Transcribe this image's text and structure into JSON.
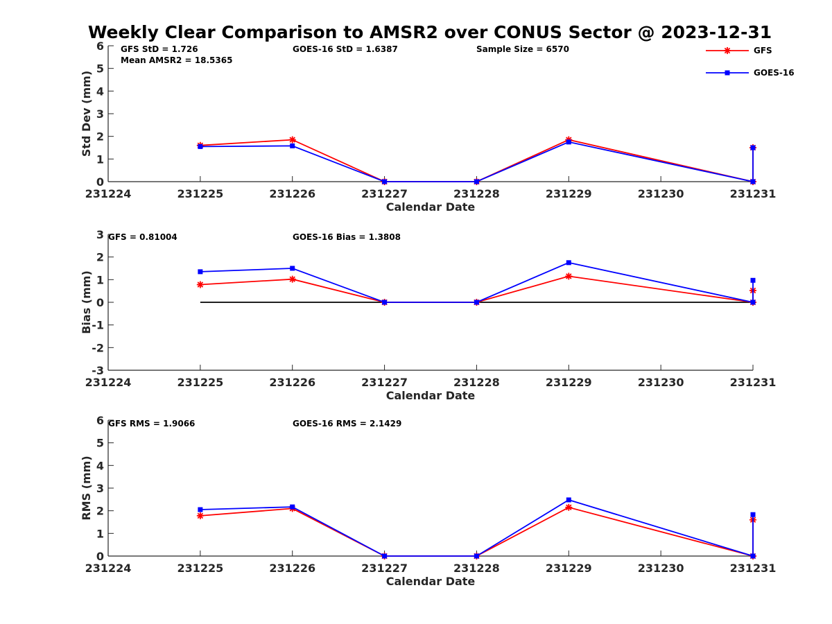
{
  "figure": {
    "title": "Weekly Clear Comparison to AMSR2 over CONUS Sector @ 2023-12-31"
  },
  "legend": {
    "placement": "top-right",
    "entries": [
      {
        "label": "GFS",
        "color": "#ff0000",
        "marker": "asterisk"
      },
      {
        "label": "GOES-16",
        "color": "#0000ff",
        "marker": "square"
      }
    ]
  },
  "chart_data": [
    {
      "type": "line",
      "xlabel": "Calendar Date",
      "ylabel": "Std Dev (mm)",
      "xlim": [
        231224,
        231231
      ],
      "ylim": [
        0,
        6
      ],
      "x_ticks": [
        "231224",
        "231225",
        "231226",
        "231227",
        "231228",
        "231229",
        "231230",
        "231231"
      ],
      "y_ticks": [
        "0",
        "1",
        "2",
        "3",
        "4",
        "5",
        "6"
      ],
      "grid": false,
      "annotations": [
        "GFS StD = 1.726",
        "Mean AMSR2 = 18.5365",
        "GOES-16 StD = 1.6387",
        "Sample Size = 6570"
      ],
      "series": [
        {
          "name": "GFS",
          "color": "#ff0000",
          "x": [
            231225,
            231226,
            231227,
            231228,
            231229,
            231231,
            231231
          ],
          "values": [
            1.6,
            1.85,
            0,
            0,
            1.85,
            0,
            1.5
          ]
        },
        {
          "name": "GOES-16",
          "color": "#0000ff",
          "x": [
            231225,
            231226,
            231227,
            231228,
            231229,
            231231,
            231231
          ],
          "values": [
            1.55,
            1.58,
            0,
            0,
            1.75,
            0,
            1.5
          ]
        }
      ]
    },
    {
      "type": "line",
      "xlabel": "Calendar Date",
      "ylabel": "Bias (mm)",
      "xlim": [
        231224,
        231231
      ],
      "ylim": [
        -3,
        3
      ],
      "x_ticks": [
        "231224",
        "231225",
        "231226",
        "231227",
        "231228",
        "231229",
        "231230",
        "231231"
      ],
      "y_ticks": [
        "-3",
        "-2",
        "-1",
        "0",
        "1",
        "2",
        "3"
      ],
      "grid": false,
      "zero_line": {
        "from": 231225,
        "to": 231231,
        "value": 0
      },
      "annotations": [
        "GFS = 0.81004",
        "GOES-16 Bias  = 1.3808"
      ],
      "series": [
        {
          "name": "GFS",
          "color": "#ff0000",
          "x": [
            231225,
            231226,
            231227,
            231228,
            231229,
            231231,
            231231
          ],
          "values": [
            0.78,
            1.02,
            0,
            0,
            1.15,
            0,
            0.52
          ]
        },
        {
          "name": "GOES-16",
          "color": "#0000ff",
          "x": [
            231225,
            231226,
            231227,
            231228,
            231229,
            231231,
            231231
          ],
          "values": [
            1.35,
            1.5,
            0,
            0,
            1.75,
            0,
            0.97
          ]
        }
      ]
    },
    {
      "type": "line",
      "xlabel": "Calendar Date",
      "ylabel": "RMS (mm)",
      "xlim": [
        231224,
        231231
      ],
      "ylim": [
        0,
        6
      ],
      "x_ticks": [
        "231224",
        "231225",
        "231226",
        "231227",
        "231228",
        "231229",
        "231230",
        "231231"
      ],
      "y_ticks": [
        "0",
        "1",
        "2",
        "3",
        "4",
        "5",
        "6"
      ],
      "grid": false,
      "annotations": [
        "GFS RMS = 1.9066",
        "GOES-16 RMS = 2.1429"
      ],
      "series": [
        {
          "name": "GFS",
          "color": "#ff0000",
          "x": [
            231225,
            231226,
            231227,
            231228,
            231229,
            231231,
            231231
          ],
          "values": [
            1.78,
            2.1,
            0,
            0,
            2.15,
            0,
            1.6
          ]
        },
        {
          "name": "GOES-16",
          "color": "#0000ff",
          "x": [
            231225,
            231226,
            231227,
            231228,
            231229,
            231231,
            231231
          ],
          "values": [
            2.05,
            2.17,
            0,
            0,
            2.48,
            0,
            1.83
          ]
        }
      ]
    }
  ]
}
